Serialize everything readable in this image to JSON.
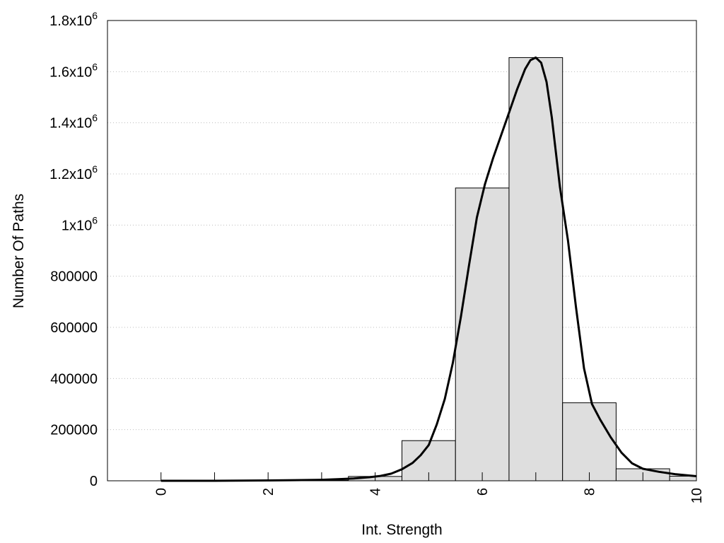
{
  "chart_data": {
    "type": "bar",
    "title": "",
    "xlabel": "Int. Strength",
    "ylabel": "Number Of Paths",
    "xlim": [
      -1,
      10
    ],
    "ylim": [
      0,
      1800000
    ],
    "grid": true,
    "x_ticks": [
      {
        "value": 0,
        "label": "0"
      },
      {
        "value": 2,
        "label": "2"
      },
      {
        "value": 4,
        "label": "4"
      },
      {
        "value": 6,
        "label": "6"
      },
      {
        "value": 8,
        "label": "8"
      },
      {
        "value": 10,
        "label": "10"
      }
    ],
    "y_ticks": [
      {
        "value": 0,
        "label": "0"
      },
      {
        "value": 200000,
        "label": "200000"
      },
      {
        "value": 400000,
        "label": "400000"
      },
      {
        "value": 600000,
        "label": "600000"
      },
      {
        "value": 800000,
        "label": "800000"
      },
      {
        "value": 1000000,
        "label": "1x10",
        "exp": "6"
      },
      {
        "value": 1200000,
        "label": "1.2x10",
        "exp": "6"
      },
      {
        "value": 1400000,
        "label": "1.4x10",
        "exp": "6"
      },
      {
        "value": 1600000,
        "label": "1.6x10",
        "exp": "6"
      },
      {
        "value": 1800000,
        "label": "1.8x10",
        "exp": "6"
      }
    ],
    "bars": {
      "width": 1,
      "color": "#dedede",
      "x": [
        0,
        1,
        2,
        3,
        4,
        5,
        6,
        7,
        8,
        9,
        10
      ],
      "values": [
        0,
        0,
        500,
        2000,
        17000,
        157000,
        1145000,
        1655000,
        305000,
        47000,
        18000
      ]
    },
    "curve": {
      "color": "#000000",
      "x": [
        0,
        0.5,
        1,
        1.5,
        2,
        2.5,
        3,
        3.3,
        3.6,
        3.9,
        4.1,
        4.3,
        4.5,
        4.7,
        4.85,
        5,
        5.15,
        5.3,
        5.45,
        5.6,
        5.75,
        5.9,
        6.05,
        6.2,
        6.35,
        6.5,
        6.65,
        6.8,
        6.9,
        7,
        7.1,
        7.2,
        7.3,
        7.45,
        7.6,
        7.75,
        7.9,
        8.05,
        8.2,
        8.4,
        8.6,
        8.8,
        9,
        9.3,
        9.6,
        10
      ],
      "y": [
        0,
        0,
        0,
        500,
        1500,
        2500,
        4000,
        6000,
        9000,
        14000,
        19000,
        28000,
        45000,
        70000,
        100000,
        140000,
        220000,
        320000,
        460000,
        640000,
        840000,
        1030000,
        1160000,
        1260000,
        1350000,
        1440000,
        1530000,
        1610000,
        1645000,
        1655000,
        1635000,
        1560000,
        1420000,
        1150000,
        940000,
        680000,
        440000,
        300000,
        240000,
        170000,
        110000,
        68000,
        47000,
        35000,
        26000,
        18000
      ]
    }
  }
}
